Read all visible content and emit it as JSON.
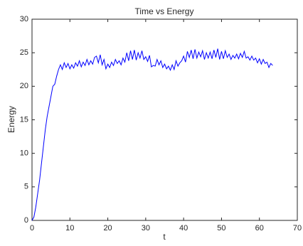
{
  "chart_data": {
    "type": "line",
    "title": "Time vs Energy",
    "x_label": "t",
    "y_label": "Energy",
    "x": [
      0,
      0.5,
      1,
      1.5,
      2,
      2.5,
      3,
      3.5,
      4,
      4.5,
      5,
      5.5,
      6,
      6.5,
      7,
      7.5,
      8,
      8.5,
      9,
      9.5,
      10,
      10.5,
      11,
      11.5,
      12,
      12.5,
      13,
      13.5,
      14,
      14.5,
      15,
      15.5,
      16,
      16.5,
      17,
      17.5,
      18,
      18.5,
      19,
      19.5,
      20,
      20.5,
      21,
      21.5,
      22,
      22.5,
      23,
      23.5,
      24,
      24.5,
      25,
      25.5,
      26,
      26.5,
      27,
      27.5,
      28,
      28.5,
      29,
      29.5,
      30,
      30.5,
      31,
      31.5,
      32,
      32.5,
      33,
      33.5,
      34,
      34.5,
      35,
      35.5,
      36,
      36.5,
      37,
      37.5,
      38,
      38.5,
      39,
      39.5,
      40,
      40.5,
      41,
      41.5,
      42,
      42.5,
      43,
      43.5,
      44,
      44.5,
      45,
      45.5,
      46,
      46.5,
      47,
      47.5,
      48,
      48.5,
      49,
      49.5,
      50,
      50.5,
      51,
      51.5,
      52,
      52.5,
      53,
      53.5,
      54,
      54.5,
      55,
      55.5,
      56,
      56.5,
      57,
      57.5,
      58,
      58.5,
      59,
      59.5,
      60,
      60.5,
      61,
      61.5,
      62,
      62.5,
      63,
      63.5
    ],
    "series": [
      {
        "name": "Energy",
        "color": "#0000ff",
        "values": [
          0,
          0.5,
          2,
          4,
          6,
          8.5,
          11,
          13.5,
          15.5,
          17,
          18.5,
          20,
          20.3,
          21.5,
          22.5,
          23.2,
          22.5,
          23.5,
          22.8,
          23.4,
          22.6,
          23.2,
          22.7,
          23.5,
          23,
          23.8,
          22.9,
          23.6,
          23.1,
          24,
          23.2,
          23.8,
          23.3,
          24.3,
          24.5,
          23.5,
          24.7,
          23.2,
          24,
          22.6,
          23.3,
          22.8,
          23.6,
          23.1,
          24,
          23.4,
          23.8,
          23.2,
          24.2,
          23.6,
          25,
          23.8,
          25.3,
          24,
          25.4,
          23.9,
          25,
          24.2,
          25.3,
          24,
          24.4,
          23.7,
          24.6,
          22.9,
          23.1,
          23,
          24,
          23.2,
          23.8,
          22.8,
          23.3,
          22.6,
          23,
          22.4,
          23.2,
          22.5,
          23.8,
          23,
          23.5,
          23.8,
          24.5,
          23.6,
          25.2,
          24.3,
          25.4,
          24.1,
          25.5,
          24.2,
          25.1,
          24.4,
          25.3,
          24,
          25,
          24.2,
          25.1,
          24.1,
          25.4,
          24.3,
          25.6,
          24,
          25.2,
          24.1,
          25.3,
          24.3,
          24.8,
          24,
          24.6,
          24.2,
          24.8,
          24.1,
          24.9,
          24.3,
          25.2,
          24.2,
          24.4,
          23.9,
          24.5,
          23.9,
          24.2,
          23.5,
          24.1,
          23.3,
          24,
          23.4,
          23.6,
          22.8,
          23.4,
          23.1
        ]
      }
    ],
    "xlim": [
      0,
      70
    ],
    "xticks": [
      0,
      10,
      20,
      30,
      40,
      50,
      60,
      70
    ],
    "ylim": [
      0,
      30
    ],
    "yticks": [
      0,
      5,
      10,
      15,
      20,
      25,
      30
    ]
  }
}
